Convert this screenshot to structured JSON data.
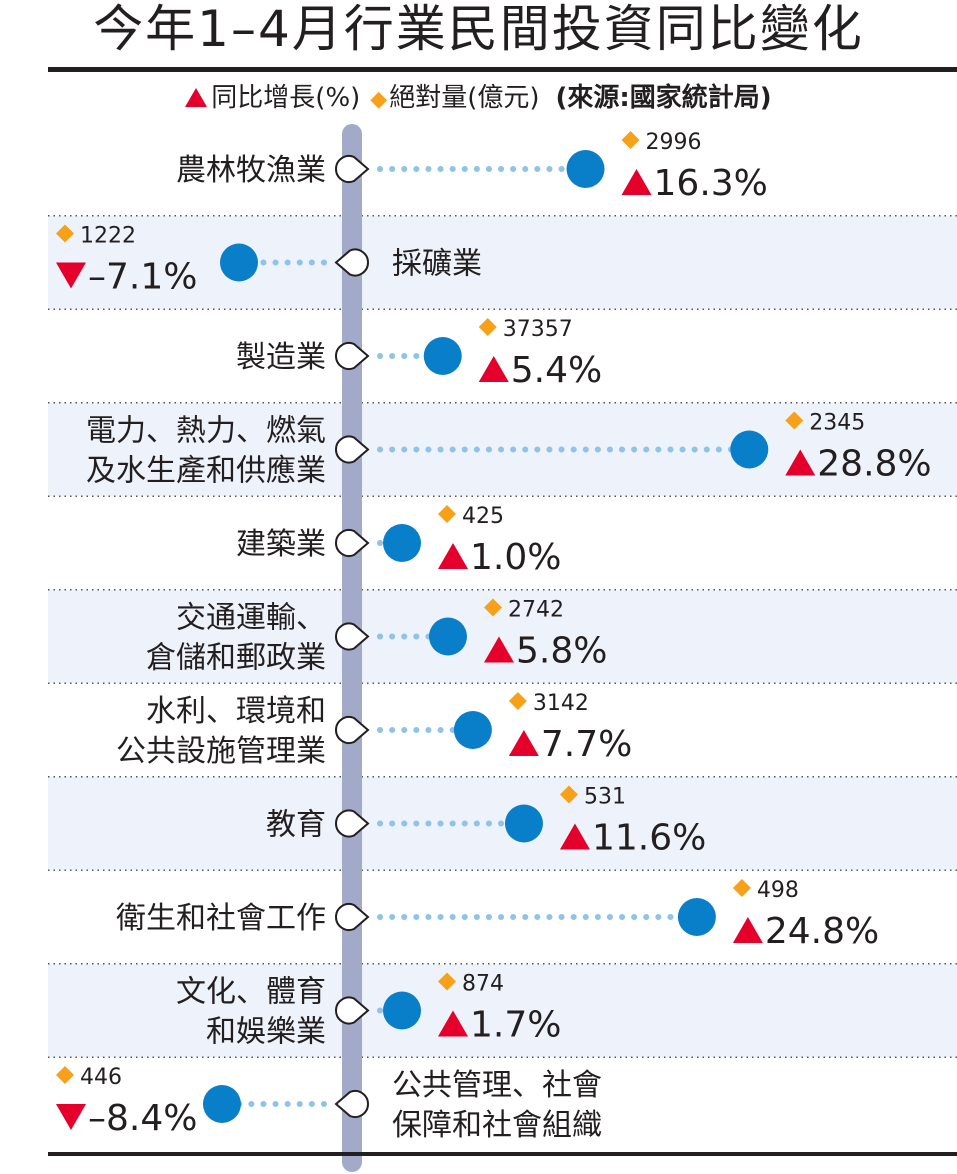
{
  "title": "今年1–4月行業民間投資同比變化",
  "legend": {
    "growth_label": "同比增長(%)",
    "amount_label": "絕對量(億元)",
    "source": "(來源:國家統計局)"
  },
  "colors": {
    "axis": "#a3a9c8",
    "dot": "#0a7fc9",
    "dotted_line": "#8fc3e8",
    "up_triangle": "#e4002b",
    "diamond": "#f7a11a",
    "band": "#eef2fa",
    "text": "#231f20"
  },
  "chart_data": {
    "type": "lollipop",
    "title": "今年1–4月行業民間投資同比變化",
    "categories": [
      [
        "農林牧漁業"
      ],
      [
        "採礦業"
      ],
      [
        "製造業"
      ],
      [
        "電力、熱力、燃氣",
        "及水生產和供應業"
      ],
      [
        "建築業"
      ],
      [
        "交通運輸、",
        "倉儲和郵政業"
      ],
      [
        "水利、環境和",
        "公共設施管理業"
      ],
      [
        "教育"
      ],
      [
        "衛生和社會工作"
      ],
      [
        "文化、體育",
        "和娛樂業"
      ],
      [
        "公共管理、社會",
        "保障和社會組織"
      ]
    ],
    "series": [
      {
        "name": "同比增長(%)",
        "values": [
          16.3,
          -7.1,
          5.4,
          28.8,
          1.0,
          5.8,
          7.7,
          11.6,
          24.8,
          1.7,
          -8.4
        ],
        "display": [
          "16.3%",
          "–7.1%",
          "5.4%",
          "28.8%",
          "1.0%",
          "5.8%",
          "7.7%",
          "11.6%",
          "24.8%",
          "1.7%",
          "–8.4%"
        ]
      },
      {
        "name": "絕對量(億元)",
        "values": [
          2996,
          1222,
          37357,
          2345,
          425,
          2742,
          3142,
          531,
          498,
          874,
          446
        ],
        "display": [
          "2996",
          "1222",
          "37357",
          "2345",
          "425",
          "2742",
          "3142",
          "531",
          "498",
          "874",
          "446"
        ]
      }
    ]
  }
}
